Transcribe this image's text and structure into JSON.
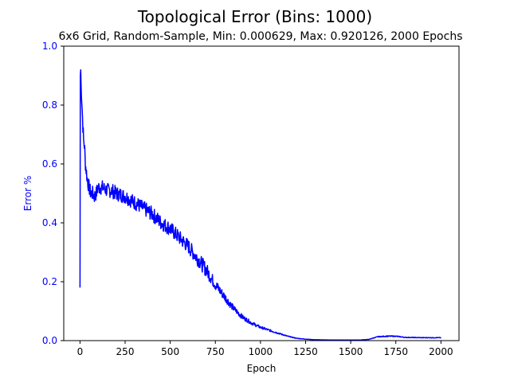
{
  "chart_data": {
    "type": "line",
    "title": "Topological Error (Bins: 1000)",
    "subtitle": "6x6 Grid, Random-Sample, Min: 0.000629, Max: 0.920126, 2000 Epochs",
    "xlabel": "Epoch",
    "ylabel": "Error %",
    "xlim": [
      -90,
      2100
    ],
    "ylim": [
      0,
      1.0
    ],
    "x_ticks": [
      0,
      250,
      500,
      750,
      1000,
      1250,
      1500,
      1750,
      2000
    ],
    "x_tick_labels": [
      "0",
      "250",
      "500",
      "750",
      "1000",
      "1250",
      "1500",
      "1750",
      "2000"
    ],
    "y_ticks": [
      0.0,
      0.2,
      0.4,
      0.6,
      0.8,
      1.0
    ],
    "y_tick_labels": [
      "0.0",
      "0.2",
      "0.4",
      "0.6",
      "0.8",
      "1.0"
    ],
    "grid": false,
    "series": [
      {
        "color": "#0000ff",
        "noise_amplitude": 0.025,
        "x": [
          0,
          1,
          2,
          4,
          6,
          10,
          15,
          20,
          25,
          30,
          40,
          50,
          60,
          70,
          80,
          90,
          100,
          125,
          150,
          175,
          200,
          250,
          300,
          350,
          400,
          450,
          500,
          550,
          600,
          650,
          700,
          750,
          800,
          850,
          900,
          950,
          1000,
          1050,
          1100,
          1150,
          1200,
          1250,
          1300,
          1400,
          1500,
          1550,
          1600,
          1620,
          1650,
          1700,
          1750,
          1800,
          1900,
          2000
        ],
        "y": [
          0.18,
          0.86,
          0.9,
          0.92,
          0.87,
          0.82,
          0.74,
          0.68,
          0.66,
          0.6,
          0.55,
          0.52,
          0.5,
          0.5,
          0.49,
          0.5,
          0.52,
          0.52,
          0.51,
          0.51,
          0.5,
          0.49,
          0.47,
          0.45,
          0.43,
          0.4,
          0.38,
          0.35,
          0.32,
          0.28,
          0.24,
          0.19,
          0.15,
          0.11,
          0.08,
          0.06,
          0.045,
          0.035,
          0.025,
          0.015,
          0.008,
          0.005,
          0.003,
          0.002,
          0.002,
          0.002,
          0.004,
          0.008,
          0.013,
          0.015,
          0.015,
          0.011,
          0.01,
          0.01
        ]
      }
    ]
  }
}
